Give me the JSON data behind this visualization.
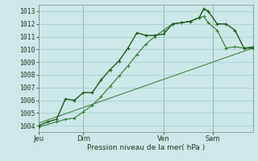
{
  "title": "",
  "xlabel": "Pression niveau de la mer( hPa )",
  "ylabel": "",
  "bg_color": "#cce8e8",
  "grid_color": "#99cccc",
  "line_color_dark": "#1a5c1a",
  "line_color_mid": "#2d7a2d",
  "ylim": [
    1003.5,
    1013.5
  ],
  "yticks": [
    1004,
    1005,
    1006,
    1007,
    1008,
    1009,
    1010,
    1011,
    1012,
    1013
  ],
  "xlim": [
    0,
    144
  ],
  "day_labels": [
    "Jeu",
    "Dim",
    "Ven",
    "Sam"
  ],
  "day_positions": [
    0,
    30,
    84,
    117
  ],
  "series1": [
    [
      0,
      1004.0
    ],
    [
      6,
      1004.3
    ],
    [
      12,
      1004.5
    ],
    [
      18,
      1006.1
    ],
    [
      24,
      1006.0
    ],
    [
      30,
      1006.6
    ],
    [
      36,
      1006.6
    ],
    [
      42,
      1007.6
    ],
    [
      48,
      1008.4
    ],
    [
      54,
      1009.1
    ],
    [
      60,
      1010.1
    ],
    [
      66,
      1011.3
    ],
    [
      72,
      1011.1
    ],
    [
      78,
      1011.1
    ],
    [
      84,
      1011.2
    ],
    [
      90,
      1012.0
    ],
    [
      96,
      1012.1
    ],
    [
      102,
      1012.2
    ],
    [
      108,
      1012.5
    ],
    [
      111,
      1013.2
    ],
    [
      114,
      1013.0
    ],
    [
      120,
      1012.0
    ],
    [
      126,
      1012.0
    ],
    [
      132,
      1011.5
    ],
    [
      138,
      1010.1
    ],
    [
      144,
      1010.1
    ]
  ],
  "series2": [
    [
      0,
      1003.9
    ],
    [
      12,
      1004.3
    ],
    [
      18,
      1004.5
    ],
    [
      24,
      1004.6
    ],
    [
      30,
      1005.1
    ],
    [
      36,
      1005.6
    ],
    [
      42,
      1006.3
    ],
    [
      48,
      1007.1
    ],
    [
      54,
      1007.9
    ],
    [
      60,
      1008.7
    ],
    [
      66,
      1009.6
    ],
    [
      72,
      1010.4
    ],
    [
      78,
      1011.0
    ],
    [
      84,
      1011.5
    ],
    [
      90,
      1012.0
    ],
    [
      96,
      1012.1
    ],
    [
      102,
      1012.2
    ],
    [
      108,
      1012.5
    ],
    [
      111,
      1012.6
    ],
    [
      114,
      1012.1
    ],
    [
      120,
      1011.5
    ],
    [
      126,
      1010.1
    ],
    [
      132,
      1010.2
    ],
    [
      138,
      1010.1
    ],
    [
      144,
      1010.2
    ]
  ],
  "series3": [
    [
      0,
      1004.2
    ],
    [
      144,
      1010.1
    ]
  ],
  "xlabel_fontsize": 6.5,
  "ytick_fontsize": 5.8,
  "xtick_fontsize": 6.0
}
